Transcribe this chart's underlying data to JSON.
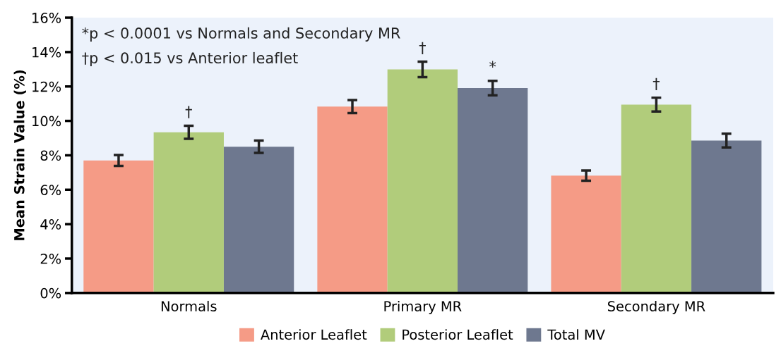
{
  "chart_data": {
    "type": "bar",
    "ylabel": "Mean Strain Value (%)",
    "categories": [
      "Normals",
      "Primary MR",
      "Secondary MR"
    ],
    "series": [
      {
        "name": "Anterior Leaflet",
        "color": "#f59b86",
        "values": [
          7.7,
          10.83,
          6.82
        ],
        "errors": [
          0.32,
          0.38,
          0.3
        ]
      },
      {
        "name": "Posterior Leaflet",
        "color": "#b1cc7b",
        "values": [
          9.34,
          12.99,
          10.95
        ],
        "errors": [
          0.38,
          0.45,
          0.4
        ],
        "value_labels": [
          "†",
          "†",
          "†"
        ]
      },
      {
        "name": "Total MV",
        "color": "#6e788f",
        "values": [
          8.5,
          11.91,
          8.86
        ],
        "errors": [
          0.36,
          0.42,
          0.4
        ],
        "value_labels": [
          null,
          "*",
          null
        ]
      }
    ],
    "ylim": [
      0,
      16
    ],
    "yticks": [
      {
        "value": 0,
        "label": "0%"
      },
      {
        "value": 2,
        "label": "2%"
      },
      {
        "value": 4,
        "label": "4%"
      },
      {
        "value": 6,
        "label": "6%"
      },
      {
        "value": 8,
        "label": "8%"
      },
      {
        "value": 10,
        "label": "10%"
      },
      {
        "value": 12,
        "label": "12%"
      },
      {
        "value": 14,
        "label": "14%"
      },
      {
        "value": 16,
        "label": "16%"
      }
    ],
    "annotations": [
      "*p < 0.0001 vs Normals and Secondary MR",
      "†p < 0.015 vs Anterior leaflet"
    ],
    "legend": "bottom",
    "grid": false
  }
}
